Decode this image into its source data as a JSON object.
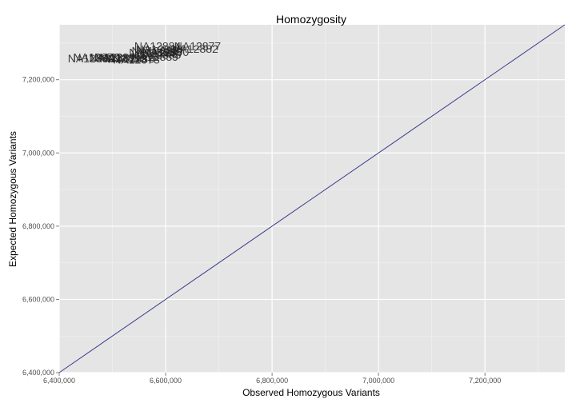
{
  "chart_data": {
    "type": "scatter",
    "title": "Homozygosity",
    "xlabel": "Observed Homozygous Variants",
    "ylabel": "Expected Homozygous Variants",
    "xlim": [
      6400000,
      7350000
    ],
    "ylim": [
      6400000,
      7350000
    ],
    "x_ticks": [
      6400000,
      6600000,
      6800000,
      7000000,
      7200000
    ],
    "x_tick_labels": [
      "6,400,000",
      "6,600,000",
      "6,800,000",
      "7,000,000",
      "7,200,000"
    ],
    "y_ticks": [
      6400000,
      6600000,
      6800000,
      7000000,
      7200000
    ],
    "y_tick_labels": [
      "6,400,000",
      "6,600,000",
      "6,800,000",
      "7,000,000",
      "7,200,000"
    ],
    "grid": true,
    "reference_line": {
      "type": "y=x",
      "color": "#3b3b8f"
    },
    "points": [
      {
        "label": "NA12877",
        "x": 6660000,
        "y": 7292000
      },
      {
        "label": "NA12882",
        "x": 6655000,
        "y": 7285000
      },
      {
        "label": "NA12884",
        "x": 6585000,
        "y": 7292000
      },
      {
        "label": "NA12880",
        "x": 6588000,
        "y": 7283000
      },
      {
        "label": "NA12890",
        "x": 6600000,
        "y": 7276000
      },
      {
        "label": "NA12887",
        "x": 6590000,
        "y": 7272000
      },
      {
        "label": "NA12888",
        "x": 6580000,
        "y": 7279000
      },
      {
        "label": "NA12893",
        "x": 6575000,
        "y": 7275000
      },
      {
        "label": "NA12885",
        "x": 6585000,
        "y": 7268000
      },
      {
        "label": "NA12889",
        "x": 6580000,
        "y": 7263000
      },
      {
        "label": "NA12891",
        "x": 6510000,
        "y": 7262000
      },
      {
        "label": "NA12879",
        "x": 6470000,
        "y": 7262000
      },
      {
        "label": "NA12881",
        "x": 6500000,
        "y": 7260000
      },
      {
        "label": "NA12883",
        "x": 6520000,
        "y": 7258000
      },
      {
        "label": "NA12892",
        "x": 6460000,
        "y": 7258000
      },
      {
        "label": "NA12886",
        "x": 6535000,
        "y": 7257000
      },
      {
        "label": "NA12878",
        "x": 6545000,
        "y": 7255000
      }
    ]
  }
}
